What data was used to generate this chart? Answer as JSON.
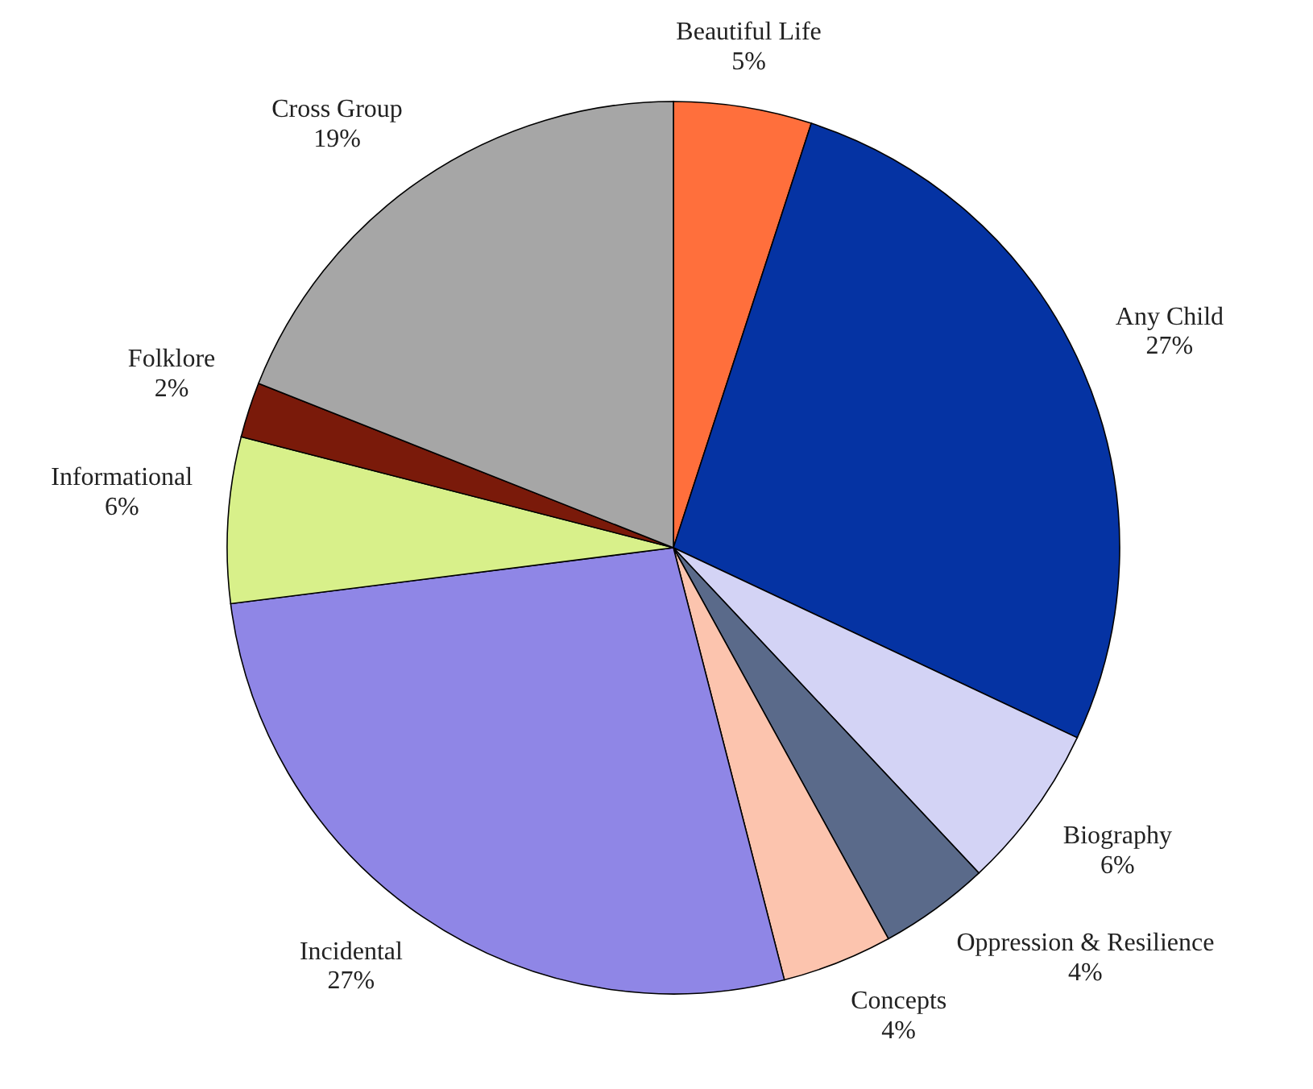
{
  "chart_data": {
    "type": "pie",
    "categories": [
      "Beautiful Life",
      "Any Child",
      "Biography",
      "Oppression & Resilience",
      "Concepts",
      "Incidental",
      "Informational",
      "Folklore",
      "Cross Group"
    ],
    "values": [
      5,
      27,
      6,
      4,
      4,
      27,
      6,
      2,
      19
    ],
    "colors": [
      "#ff6f3c",
      "#0533a3",
      "#d3d3f5",
      "#5a6a8a",
      "#fcc4ae",
      "#8f86e6",
      "#d8f08a",
      "#7a1a0a",
      "#a6a6a6"
    ],
    "value_labels": [
      "5%",
      "27%",
      "6%",
      "4%",
      "4%",
      "27%",
      "6%",
      "2%",
      "19%"
    ]
  }
}
